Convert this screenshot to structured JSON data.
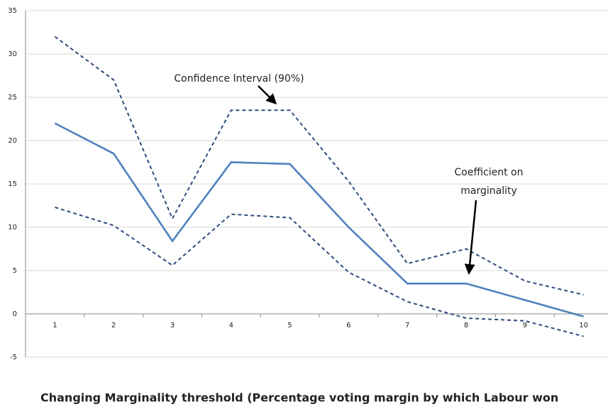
{
  "chart_data": {
    "type": "line",
    "x_label": "Changing Marginality threshold (Percentage voting margin by which Labour won",
    "annotations": [
      "Confidence Interval (90%)",
      "Coefficient on",
      "marginality"
    ],
    "categories": [
      "1",
      "2",
      "3",
      "4",
      "5",
      "6",
      "7",
      "8",
      "9",
      "10"
    ],
    "series": [
      {
        "color": "#2c4a7c",
        "dashed": true,
        "values": [
          32,
          27,
          11,
          23.5,
          23.5,
          15.3,
          5.8,
          7.5,
          3.8,
          2.2
        ]
      },
      {
        "color": "#4f81bd",
        "dashed": false,
        "values": [
          22,
          18.5,
          8.4,
          17.5,
          17.3,
          10,
          3.5,
          3.5,
          1.6,
          -0.3
        ]
      },
      {
        "color": "#2c4a7c",
        "dashed": true,
        "values": [
          12.3,
          10.2,
          5.6,
          11.5,
          11.1,
          4.8,
          1.4,
          -0.5,
          -0.8,
          -2.6
        ]
      }
    ],
    "ylim": [
      -5,
      35
    ],
    "yticks": [
      -5,
      0,
      5,
      10,
      15,
      20,
      25,
      30,
      35
    ],
    "grid": true
  }
}
